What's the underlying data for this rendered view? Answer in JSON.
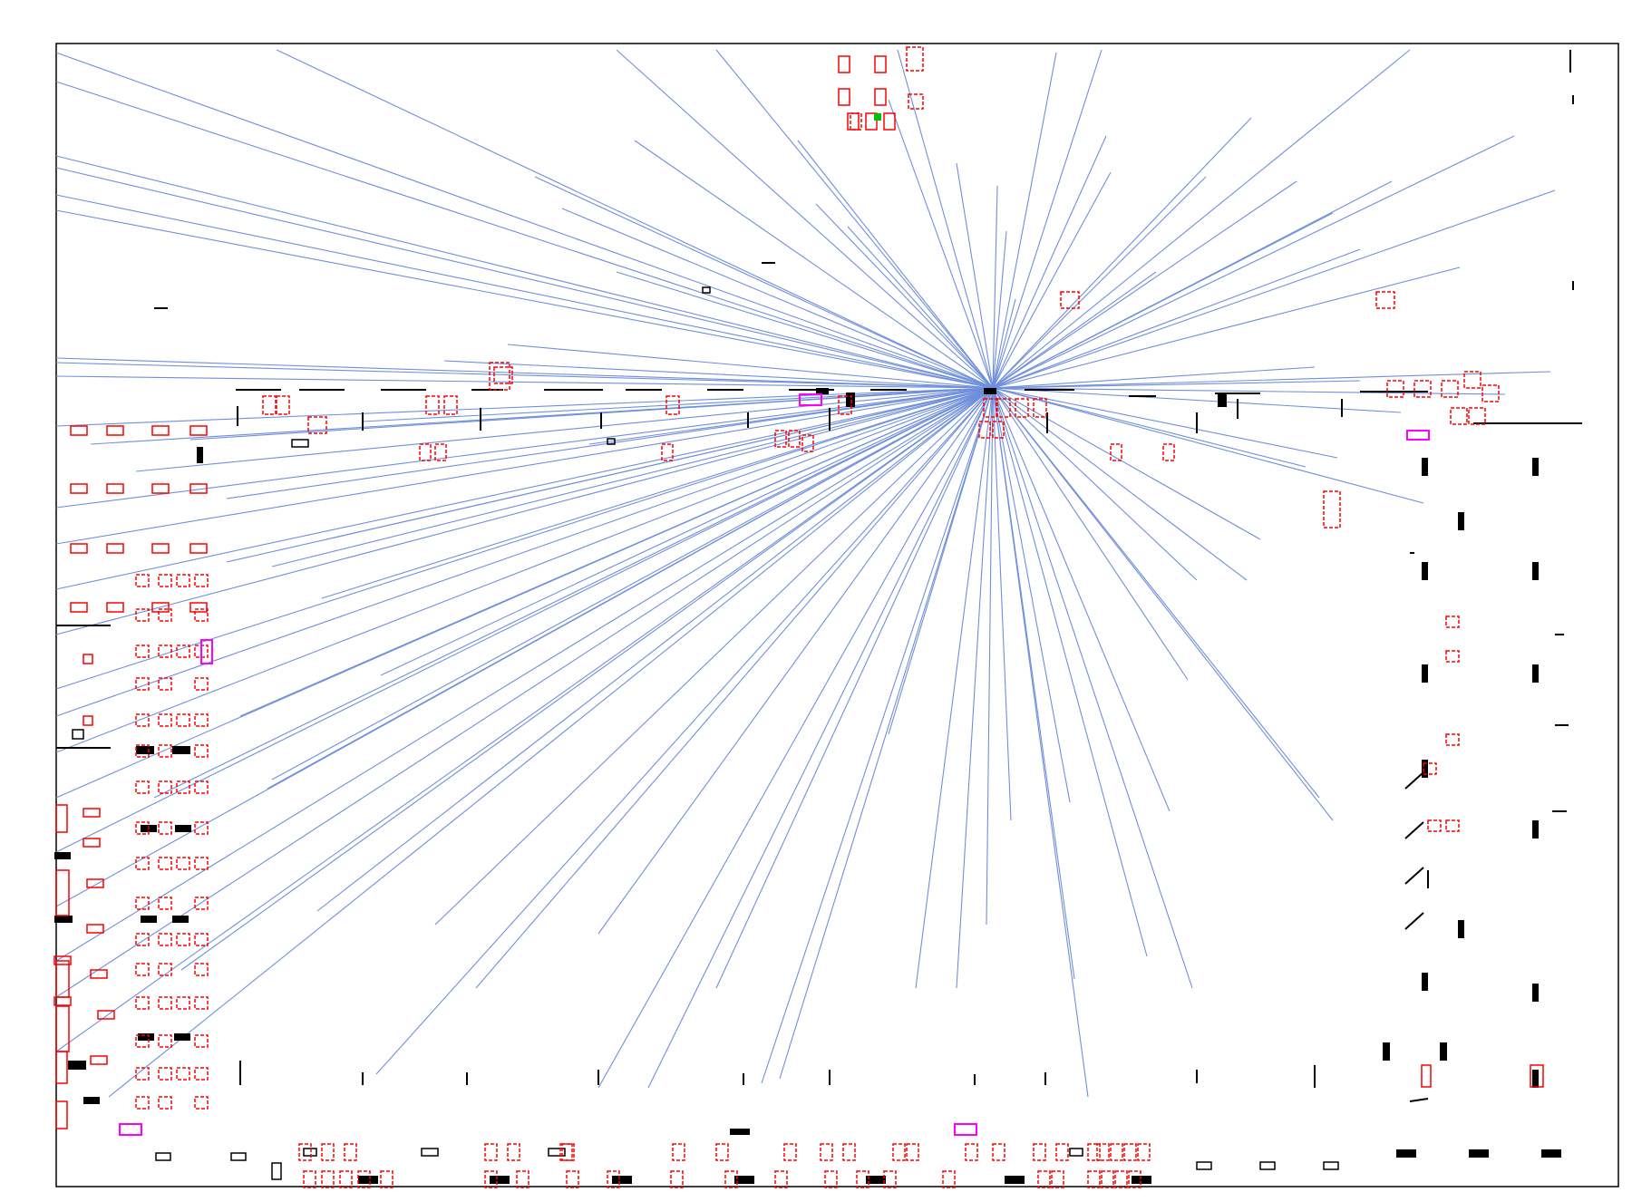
{
  "view": {
    "background": "#ffffff",
    "frame_color": "#000000",
    "ray_color": "#6f8fdc",
    "furniture_red": "#ff0000",
    "wall_black": "#000000",
    "accent_magenta": "#ff00ff",
    "accent_green": "#00c000"
  },
  "legend_text": ""
}
